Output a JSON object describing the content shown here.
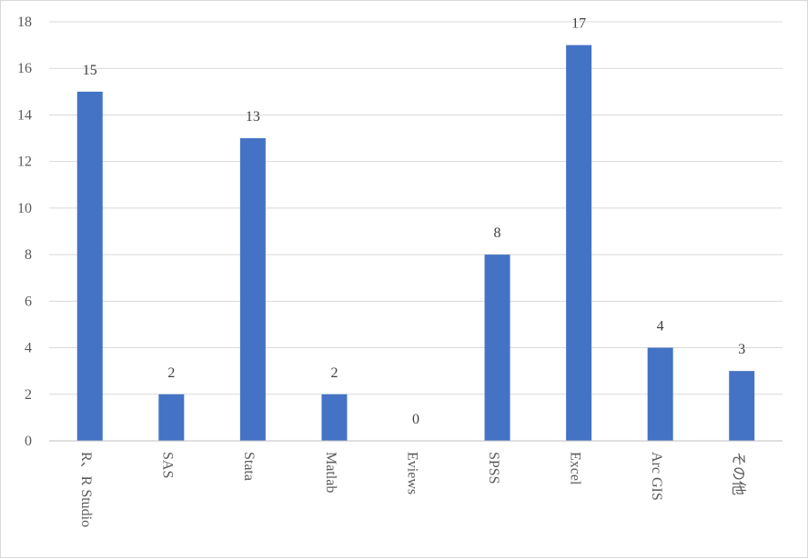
{
  "chart_data": {
    "type": "bar",
    "categories": [
      "R、R Studio",
      "SAS",
      "Stata",
      "Matlab",
      "Eviews",
      "SPSS",
      "Excel",
      "Arc GIS",
      "その他"
    ],
    "values": [
      15,
      2,
      13,
      2,
      0,
      8,
      17,
      4,
      3
    ],
    "yticks": [
      "0",
      "2",
      "4",
      "6",
      "8",
      "10",
      "12",
      "14",
      "16",
      "18"
    ],
    "ylim": [
      0,
      18
    ],
    "grid": true,
    "bar_color": "#4472c4",
    "grid_color": "#d9d9d9",
    "category_label_orientation": "vertical"
  }
}
